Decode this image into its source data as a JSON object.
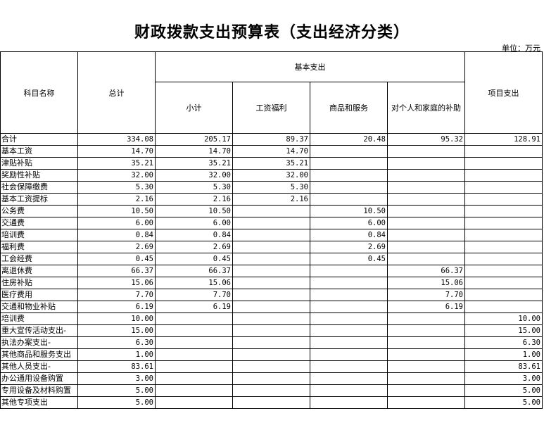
{
  "title": "财政拨款支出预算表（支出经济分类）",
  "unit": "单位：万元",
  "headers": {
    "name": "科目名称",
    "total": "总计",
    "basic": "基本支出",
    "subtotal": "小计",
    "salary": "工资福利",
    "goods": "商品和服务",
    "household": "对个人和家庭的补助",
    "project": "项目支出"
  },
  "rows": [
    [
      "合计",
      "334.08",
      "205.17",
      "89.37",
      "20.48",
      "95.32",
      "128.91"
    ],
    [
      "基本工资",
      "14.70",
      "14.70",
      "14.70",
      "",
      "",
      ""
    ],
    [
      "津贴补贴",
      "35.21",
      "35.21",
      "35.21",
      "",
      "",
      ""
    ],
    [
      "奖励性补贴",
      "32.00",
      "32.00",
      "32.00",
      "",
      "",
      ""
    ],
    [
      "社会保障缴费",
      "5.30",
      "5.30",
      "5.30",
      "",
      "",
      ""
    ],
    [
      "基本工资提标",
      "2.16",
      "2.16",
      "2.16",
      "",
      "",
      ""
    ],
    [
      "公务费",
      "10.50",
      "10.50",
      "",
      "10.50",
      "",
      ""
    ],
    [
      "交通费",
      "6.00",
      "6.00",
      "",
      "6.00",
      "",
      ""
    ],
    [
      "培训费",
      "0.84",
      "0.84",
      "",
      "0.84",
      "",
      ""
    ],
    [
      "福利费",
      "2.69",
      "2.69",
      "",
      "2.69",
      "",
      ""
    ],
    [
      "工会经费",
      "0.45",
      "0.45",
      "",
      "0.45",
      "",
      ""
    ],
    [
      "离退休费",
      "66.37",
      "66.37",
      "",
      "",
      "66.37",
      ""
    ],
    [
      "住房补贴",
      "15.06",
      "15.06",
      "",
      "",
      "15.06",
      ""
    ],
    [
      "医疗费用",
      "7.70",
      "7.70",
      "",
      "",
      "7.70",
      ""
    ],
    [
      "交通和物业补贴",
      "6.19",
      "6.19",
      "",
      "",
      "6.19",
      ""
    ],
    [
      "培训费",
      "10.00",
      "",
      "",
      "",
      "",
      "10.00"
    ],
    [
      "重大宣传活动支出-",
      "15.00",
      "",
      "",
      "",
      "",
      "15.00"
    ],
    [
      "执法办案支出-",
      "6.30",
      "",
      "",
      "",
      "",
      "6.30"
    ],
    [
      "其他商品和服务支出",
      "1.00",
      "",
      "",
      "",
      "",
      "1.00"
    ],
    [
      "其他人员支出-",
      "83.61",
      "",
      "",
      "",
      "",
      "83.61"
    ],
    [
      "办公通用设备购置",
      "3.00",
      "",
      "",
      "",
      "",
      "3.00"
    ],
    [
      "专用设备及材料购置",
      "5.00",
      "",
      "",
      "",
      "",
      "5.00"
    ],
    [
      "其他专项支出",
      "5.00",
      "",
      "",
      "",
      "",
      "5.00"
    ]
  ]
}
